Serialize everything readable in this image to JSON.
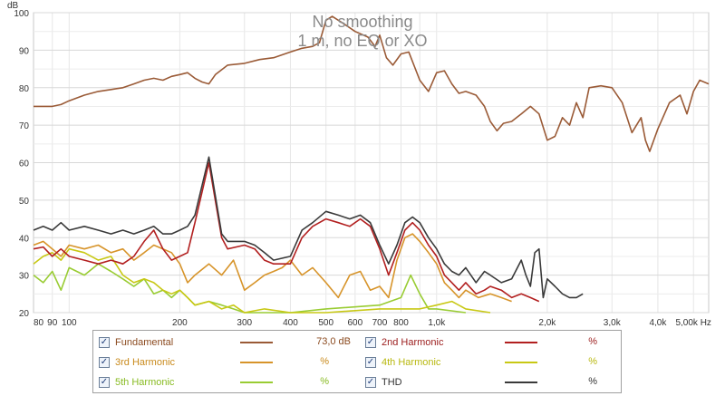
{
  "chart_data": {
    "type": "line",
    "title": "No smoothing",
    "subtitle": "1 m, no EQ or XO",
    "xscale": "log",
    "xlim": [
      80,
      5500
    ],
    "ylim": [
      20,
      100
    ],
    "ylabel": "dB",
    "yticks": [
      "20",
      "30",
      "40",
      "50",
      "60",
      "70",
      "80",
      "90",
      "100"
    ],
    "xticks": [
      {
        "v": 80,
        "l": "80"
      },
      {
        "v": 90,
        "l": "90"
      },
      {
        "v": 100,
        "l": "100"
      },
      {
        "v": 200,
        "l": "200"
      },
      {
        "v": 300,
        "l": "300"
      },
      {
        "v": 400,
        "l": "400"
      },
      {
        "v": 500,
        "l": "500"
      },
      {
        "v": 600,
        "l": "600"
      },
      {
        "v": 700,
        "l": "700"
      },
      {
        "v": 800,
        "l": "800"
      },
      {
        "v": 1000,
        "l": "1,0k"
      },
      {
        "v": 2000,
        "l": "2,0k"
      },
      {
        "v": 3000,
        "l": "3,0k"
      },
      {
        "v": 4000,
        "l": "4,0k"
      },
      {
        "v": 5000,
        "l": "5,00k Hz"
      }
    ],
    "series": [
      {
        "name": "Fundamental",
        "color": "#9a5a36",
        "value": "73,0 dB",
        "points": [
          [
            80,
            75
          ],
          [
            90,
            75
          ],
          [
            95,
            75.5
          ],
          [
            100,
            76.5
          ],
          [
            110,
            78
          ],
          [
            120,
            79
          ],
          [
            130,
            79.5
          ],
          [
            140,
            80
          ],
          [
            150,
            81
          ],
          [
            160,
            82
          ],
          [
            170,
            82.5
          ],
          [
            180,
            82
          ],
          [
            190,
            83
          ],
          [
            200,
            83.5
          ],
          [
            210,
            84
          ],
          [
            220,
            82.5
          ],
          [
            230,
            81.5
          ],
          [
            240,
            81
          ],
          [
            250,
            83.5
          ],
          [
            270,
            86
          ],
          [
            300,
            86.5
          ],
          [
            330,
            87.5
          ],
          [
            360,
            88
          ],
          [
            400,
            89.5
          ],
          [
            430,
            90.5
          ],
          [
            460,
            91
          ],
          [
            480,
            92
          ],
          [
            500,
            98
          ],
          [
            520,
            99
          ],
          [
            560,
            97
          ],
          [
            600,
            95
          ],
          [
            650,
            93.5
          ],
          [
            680,
            91
          ],
          [
            700,
            94
          ],
          [
            730,
            88
          ],
          [
            760,
            86
          ],
          [
            800,
            89
          ],
          [
            840,
            89.5
          ],
          [
            900,
            82
          ],
          [
            950,
            79
          ],
          [
            1000,
            84
          ],
          [
            1050,
            84.5
          ],
          [
            1100,
            81
          ],
          [
            1150,
            78.5
          ],
          [
            1200,
            79
          ],
          [
            1280,
            78
          ],
          [
            1350,
            75
          ],
          [
            1400,
            71
          ],
          [
            1460,
            68.5
          ],
          [
            1520,
            70.5
          ],
          [
            1600,
            71
          ],
          [
            1700,
            73
          ],
          [
            1800,
            75
          ],
          [
            1900,
            73
          ],
          [
            2000,
            66
          ],
          [
            2100,
            67
          ],
          [
            2200,
            72
          ],
          [
            2300,
            70
          ],
          [
            2400,
            76
          ],
          [
            2500,
            72
          ],
          [
            2600,
            80
          ],
          [
            2800,
            80.5
          ],
          [
            3000,
            80
          ],
          [
            3200,
            76
          ],
          [
            3400,
            68
          ],
          [
            3600,
            72
          ],
          [
            3700,
            66
          ],
          [
            3800,
            63
          ],
          [
            4000,
            69
          ],
          [
            4300,
            76
          ],
          [
            4600,
            78
          ],
          [
            4800,
            73
          ],
          [
            5000,
            79
          ],
          [
            5200,
            82
          ],
          [
            5500,
            81
          ]
        ]
      },
      {
        "name": "2nd Harmonic",
        "color": "#b21f1f",
        "value": "%",
        "points": [
          [
            80,
            37
          ],
          [
            85,
            37.5
          ],
          [
            90,
            35
          ],
          [
            95,
            37
          ],
          [
            100,
            35
          ],
          [
            110,
            34
          ],
          [
            120,
            33
          ],
          [
            130,
            34
          ],
          [
            140,
            33
          ],
          [
            150,
            35
          ],
          [
            160,
            39
          ],
          [
            170,
            42
          ],
          [
            180,
            37
          ],
          [
            190,
            34
          ],
          [
            200,
            35
          ],
          [
            210,
            36
          ],
          [
            220,
            44
          ],
          [
            240,
            60
          ],
          [
            260,
            40
          ],
          [
            270,
            37
          ],
          [
            300,
            38
          ],
          [
            320,
            37
          ],
          [
            340,
            34
          ],
          [
            360,
            33
          ],
          [
            400,
            33
          ],
          [
            430,
            40
          ],
          [
            460,
            43
          ],
          [
            500,
            45
          ],
          [
            540,
            44
          ],
          [
            580,
            43
          ],
          [
            620,
            45
          ],
          [
            660,
            43
          ],
          [
            700,
            37
          ],
          [
            740,
            30
          ],
          [
            780,
            36
          ],
          [
            820,
            42
          ],
          [
            860,
            44
          ],
          [
            900,
            42
          ],
          [
            950,
            38
          ],
          [
            1000,
            35
          ],
          [
            1050,
            30
          ],
          [
            1100,
            28
          ],
          [
            1150,
            26
          ],
          [
            1200,
            28
          ],
          [
            1280,
            25
          ],
          [
            1350,
            26
          ],
          [
            1400,
            27
          ],
          [
            1500,
            26
          ],
          [
            1600,
            24
          ],
          [
            1700,
            25
          ],
          [
            1800,
            24
          ],
          [
            1900,
            23
          ]
        ]
      },
      {
        "name": "3rd Harmonic",
        "color": "#d7942a",
        "value": "%",
        "points": [
          [
            80,
            38
          ],
          [
            85,
            39
          ],
          [
            90,
            37
          ],
          [
            95,
            35
          ],
          [
            100,
            38
          ],
          [
            110,
            37
          ],
          [
            120,
            38
          ],
          [
            130,
            36
          ],
          [
            140,
            37
          ],
          [
            150,
            34
          ],
          [
            160,
            36
          ],
          [
            170,
            38
          ],
          [
            180,
            37
          ],
          [
            190,
            36
          ],
          [
            200,
            33
          ],
          [
            210,
            28
          ],
          [
            220,
            30
          ],
          [
            240,
            33
          ],
          [
            260,
            30
          ],
          [
            280,
            34
          ],
          [
            300,
            26
          ],
          [
            320,
            28
          ],
          [
            340,
            30
          ],
          [
            360,
            31
          ],
          [
            380,
            32
          ],
          [
            400,
            34
          ],
          [
            430,
            30
          ],
          [
            460,
            32
          ],
          [
            500,
            28
          ],
          [
            540,
            24
          ],
          [
            580,
            30
          ],
          [
            620,
            31
          ],
          [
            660,
            26
          ],
          [
            700,
            27
          ],
          [
            740,
            24
          ],
          [
            780,
            34
          ],
          [
            820,
            40
          ],
          [
            860,
            41
          ],
          [
            900,
            39
          ],
          [
            950,
            36
          ],
          [
            1000,
            33
          ],
          [
            1050,
            28
          ],
          [
            1100,
            26
          ],
          [
            1150,
            24
          ],
          [
            1200,
            26
          ],
          [
            1300,
            24
          ],
          [
            1400,
            25
          ],
          [
            1500,
            24
          ],
          [
            1600,
            23
          ]
        ]
      },
      {
        "name": "4th Harmonic",
        "color": "#c8c814",
        "value": "%",
        "points": [
          [
            80,
            33
          ],
          [
            85,
            35
          ],
          [
            90,
            36
          ],
          [
            95,
            34
          ],
          [
            100,
            37
          ],
          [
            110,
            36
          ],
          [
            120,
            34
          ],
          [
            130,
            35
          ],
          [
            140,
            30
          ],
          [
            150,
            28
          ],
          [
            160,
            29
          ],
          [
            170,
            28
          ],
          [
            180,
            26
          ],
          [
            190,
            25
          ],
          [
            200,
            26
          ],
          [
            210,
            24
          ],
          [
            220,
            22
          ],
          [
            240,
            23
          ],
          [
            260,
            21
          ],
          [
            280,
            22
          ],
          [
            300,
            20
          ],
          [
            340,
            21
          ],
          [
            400,
            20
          ],
          [
            500,
            20
          ],
          [
            700,
            21
          ],
          [
            900,
            21
          ],
          [
            1000,
            22
          ],
          [
            1100,
            23
          ],
          [
            1200,
            21
          ],
          [
            1400,
            20
          ]
        ]
      },
      {
        "name": "5th Harmonic",
        "color": "#99cc33",
        "value": "%",
        "points": [
          [
            80,
            30
          ],
          [
            85,
            28
          ],
          [
            90,
            31
          ],
          [
            95,
            26
          ],
          [
            100,
            32
          ],
          [
            110,
            30
          ],
          [
            120,
            33
          ],
          [
            130,
            31
          ],
          [
            140,
            29
          ],
          [
            150,
            27
          ],
          [
            160,
            29
          ],
          [
            170,
            25
          ],
          [
            180,
            26
          ],
          [
            190,
            24
          ],
          [
            200,
            26
          ],
          [
            210,
            24
          ],
          [
            220,
            22
          ],
          [
            240,
            23
          ],
          [
            260,
            22
          ],
          [
            280,
            21
          ],
          [
            300,
            20
          ],
          [
            400,
            20
          ],
          [
            500,
            21
          ],
          [
            700,
            22
          ],
          [
            800,
            24
          ],
          [
            850,
            30
          ],
          [
            900,
            25
          ],
          [
            950,
            21
          ],
          [
            1000,
            21
          ],
          [
            1200,
            20
          ]
        ]
      },
      {
        "name": "THD",
        "color": "#3a3a3a",
        "value": "%",
        "points": [
          [
            80,
            42
          ],
          [
            85,
            43
          ],
          [
            90,
            42
          ],
          [
            95,
            44
          ],
          [
            100,
            42
          ],
          [
            110,
            43
          ],
          [
            120,
            42
          ],
          [
            130,
            41
          ],
          [
            140,
            42
          ],
          [
            150,
            41
          ],
          [
            160,
            42
          ],
          [
            170,
            43
          ],
          [
            180,
            41
          ],
          [
            190,
            41
          ],
          [
            200,
            42
          ],
          [
            210,
            43
          ],
          [
            220,
            46
          ],
          [
            240,
            61.5
          ],
          [
            260,
            41
          ],
          [
            270,
            39
          ],
          [
            300,
            39
          ],
          [
            320,
            38
          ],
          [
            340,
            36
          ],
          [
            360,
            34
          ],
          [
            400,
            35
          ],
          [
            430,
            42
          ],
          [
            460,
            44
          ],
          [
            500,
            47
          ],
          [
            540,
            46
          ],
          [
            580,
            45
          ],
          [
            620,
            46
          ],
          [
            660,
            44
          ],
          [
            700,
            38
          ],
          [
            740,
            33
          ],
          [
            780,
            38
          ],
          [
            820,
            44
          ],
          [
            860,
            45.5
          ],
          [
            900,
            44
          ],
          [
            950,
            40
          ],
          [
            1000,
            37
          ],
          [
            1050,
            33
          ],
          [
            1100,
            31
          ],
          [
            1150,
            30
          ],
          [
            1200,
            32
          ],
          [
            1280,
            28
          ],
          [
            1350,
            31
          ],
          [
            1400,
            30
          ],
          [
            1500,
            28
          ],
          [
            1600,
            29
          ],
          [
            1700,
            34
          ],
          [
            1750,
            30
          ],
          [
            1800,
            27
          ],
          [
            1850,
            36
          ],
          [
            1900,
            37
          ],
          [
            1950,
            24
          ],
          [
            2000,
            29
          ],
          [
            2100,
            27
          ],
          [
            2200,
            25
          ],
          [
            2300,
            24
          ],
          [
            2400,
            24
          ],
          [
            2500,
            25
          ]
        ]
      }
    ]
  }
}
